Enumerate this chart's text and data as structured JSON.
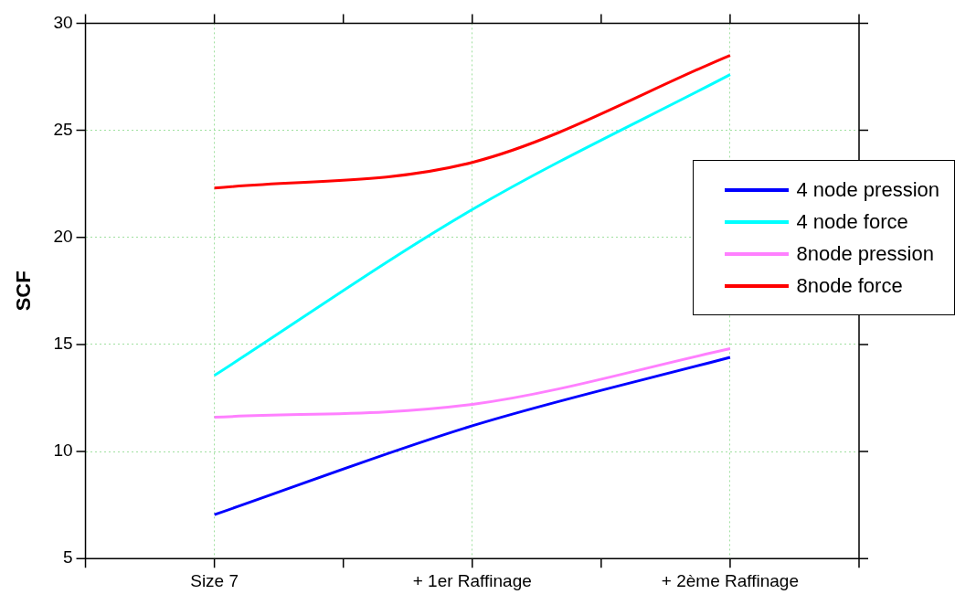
{
  "chart_data": {
    "type": "line",
    "ylabel": "SCF",
    "categories": [
      "Size 7",
      "+ 1er Raffinage",
      "+ 2ème Raffinage"
    ],
    "series": [
      {
        "name": "4 node pression",
        "color": "#0000ff",
        "values": [
          7.05,
          11.2,
          14.4
        ]
      },
      {
        "name": "4 node force",
        "color": "#00ffff",
        "values": [
          13.55,
          21.3,
          27.6
        ]
      },
      {
        "name": "8node pression",
        "color": "#ff80ff",
        "values": [
          11.6,
          12.2,
          14.8
        ]
      },
      {
        "name": "8node force",
        "color": "#ff0000",
        "values": [
          22.3,
          23.5,
          28.5
        ]
      }
    ],
    "ylim": [
      5,
      30
    ],
    "yticks": [
      5,
      10,
      15,
      20,
      25,
      30
    ],
    "grid": true,
    "legend": "right",
    "marker": "none",
    "line_style": "solid"
  }
}
